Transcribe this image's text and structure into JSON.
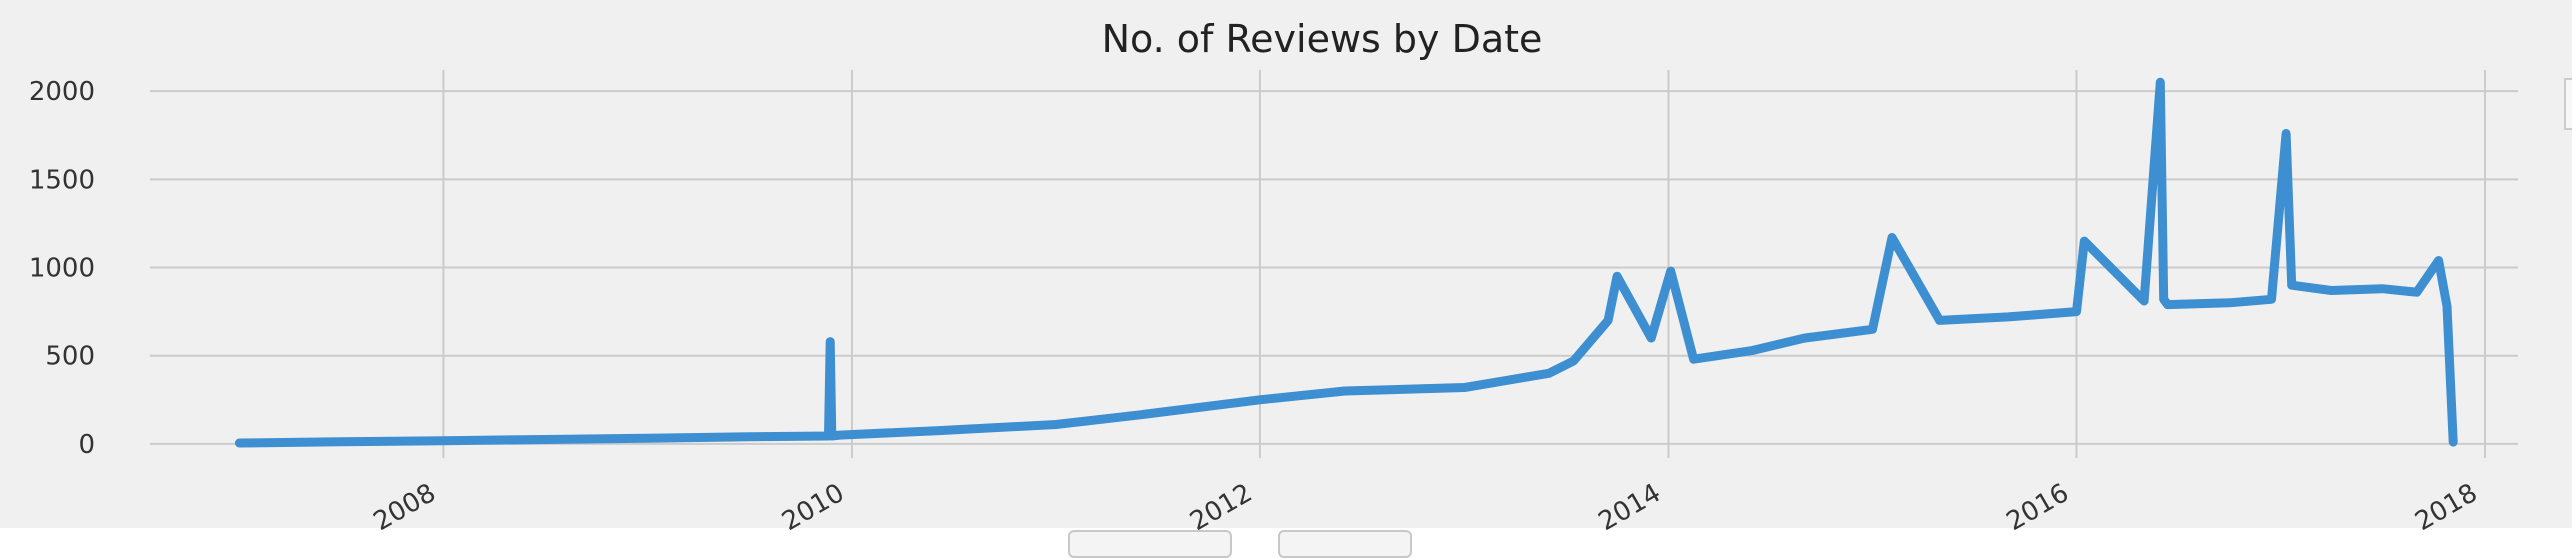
{
  "chart_data": {
    "type": "line",
    "title": "No. of Reviews by Date",
    "xlabel": "",
    "ylabel": "",
    "x_ticks": [
      "2008",
      "2010",
      "2012",
      "2014",
      "2016",
      "2018"
    ],
    "y_ticks": [
      "0",
      "500",
      "1000",
      "1500",
      "2000"
    ],
    "xlim": [
      "2006-07-25",
      "2018-03-01"
    ],
    "ylim": [
      -80,
      2120
    ],
    "grid": true,
    "series": [
      {
        "color": "#3d8fd1",
        "x": [
          "2007-01-01",
          "2007-07-01",
          "2008-01-01",
          "2008-07-01",
          "2009-01-01",
          "2009-07-01",
          "2009-11-20",
          "2009-11-23",
          "2009-11-26",
          "2009-12-10",
          "2010-06-01",
          "2011-01-01",
          "2011-06-01",
          "2012-01-01",
          "2012-06-01",
          "2013-01-01",
          "2013-06-01",
          "2013-07-15",
          "2013-09-15",
          "2013-10-01",
          "2013-12-01",
          "2014-01-05",
          "2014-02-15",
          "2014-06-01",
          "2014-09-01",
          "2015-01-01",
          "2015-02-05",
          "2015-05-01",
          "2015-09-01",
          "2016-01-01",
          "2016-01-15",
          "2016-05-01",
          "2016-05-30",
          "2016-06-05",
          "2016-06-12",
          "2016-10-01",
          "2016-12-15",
          "2017-01-10",
          "2017-01-20",
          "2017-04-01",
          "2017-07-01",
          "2017-09-01",
          "2017-10-10",
          "2017-10-25",
          "2017-11-05"
        ],
        "values": [
          5,
          12,
          18,
          25,
          32,
          40,
          45,
          580,
          45,
          50,
          75,
          110,
          165,
          250,
          300,
          320,
          400,
          470,
          700,
          950,
          600,
          980,
          480,
          530,
          600,
          650,
          1170,
          700,
          720,
          750,
          1150,
          810,
          2050,
          820,
          790,
          800,
          820,
          1760,
          900,
          870,
          880,
          860,
          1040,
          780,
          10
        ]
      }
    ]
  }
}
